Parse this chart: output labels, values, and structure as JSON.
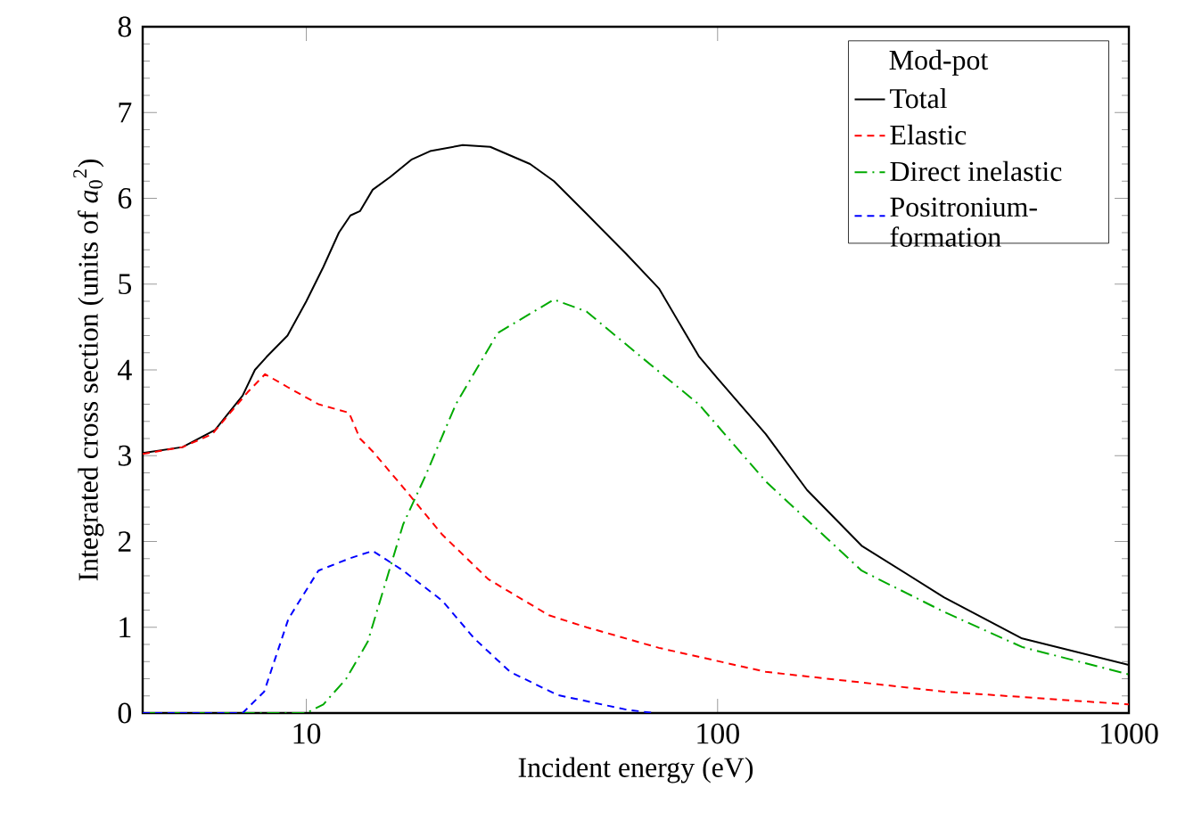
{
  "chart_data": {
    "type": "line",
    "xlabel": "Incident energy (eV)",
    "ylabel": "Integrated cross section (units of *a*$_{0}$$^{2}$)",
    "legend_title": "Mod-pot",
    "log": "x",
    "xlim": [
      4,
      1000
    ],
    "xticks": [
      10,
      100,
      1000
    ],
    "ylim": [
      0,
      8
    ],
    "yticks": [
      0,
      1,
      2,
      3,
      4,
      5,
      6,
      7,
      8
    ],
    "grid": false,
    "legend": "top right",
    "marker": "none",
    "series": [
      {
        "name": "Total",
        "color": "#000000",
        "line_style": "solid",
        "x": [
          4,
          5,
          6,
          7,
          7.5,
          8,
          9,
          10,
          11,
          12,
          12.8,
          13.5,
          14.5,
          16,
          18,
          20,
          24,
          28,
          35,
          40,
          48,
          60,
          72,
          90,
          100,
          131,
          165,
          224,
          355,
          550,
          1000
        ],
        "values": [
          3.03,
          3.1,
          3.3,
          3.7,
          4.0,
          4.15,
          4.4,
          4.8,
          5.2,
          5.6,
          5.8,
          5.85,
          6.1,
          6.25,
          6.45,
          6.55,
          6.62,
          6.6,
          6.4,
          6.2,
          5.82,
          5.35,
          4.95,
          4.16,
          3.9,
          3.25,
          2.6,
          1.95,
          1.35,
          0.87,
          0.56
        ]
      },
      {
        "name": "Elastic",
        "color": "#ff0000",
        "line_style": "dashed",
        "x": [
          4,
          5,
          5.9,
          7.2,
          7.94,
          9,
          10.7,
          12.7,
          13.5,
          14.5,
          17.2,
          21.4,
          27.7,
          38.9,
          48,
          72,
          131,
          355,
          1000
        ],
        "values": [
          3.02,
          3.1,
          3.25,
          3.74,
          3.95,
          3.8,
          3.6,
          3.5,
          3.2,
          3.05,
          2.63,
          2.08,
          1.56,
          1.14,
          1.0,
          0.76,
          0.48,
          0.25,
          0.1
        ]
      },
      {
        "name": "Direct inelastic",
        "color": "#00aa00",
        "line_style": "dashdot",
        "x": [
          4,
          10,
          11,
          12.5,
          14.1,
          17.2,
          19.5,
          23.1,
          29.2,
          40,
          48,
          72,
          90,
          131,
          224,
          355,
          550,
          1000
        ],
        "values": [
          0,
          0,
          0.1,
          0.4,
          0.83,
          2.2,
          2.77,
          3.6,
          4.43,
          4.82,
          4.68,
          3.98,
          3.6,
          2.7,
          1.66,
          1.18,
          0.77,
          0.45
        ]
      },
      {
        "name": "Positronium-formation",
        "color": "#0000ff",
        "line_style": "dashed",
        "x": [
          4,
          7,
          7.9,
          9.05,
          10.7,
          12.7,
          14.5,
          17.2,
          21.4,
          25.6,
          31.3,
          40.8,
          60,
          70
        ],
        "values": [
          0,
          0,
          0.25,
          1.1,
          1.66,
          1.8,
          1.89,
          1.66,
          1.31,
          0.87,
          0.48,
          0.21,
          0.04,
          0
        ]
      }
    ]
  }
}
